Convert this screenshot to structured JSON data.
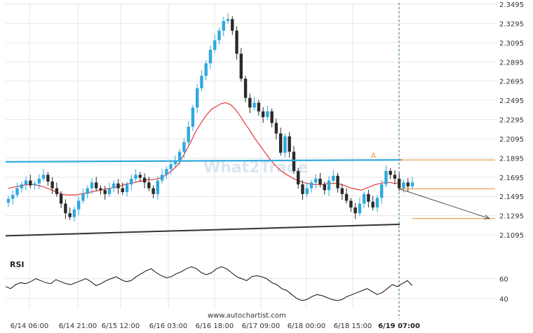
{
  "chart_data": {
    "type": "candlestick",
    "title": "",
    "ylim": [
      2.1015,
      2.3495
    ],
    "y_ticks": [
      "2.3495",
      "2.3295",
      "2.3095",
      "2.2895",
      "2.2695",
      "2.2495",
      "2.2295",
      "2.2095",
      "2.1895",
      "2.1695",
      "2.1495",
      "2.1295",
      "2.1095"
    ],
    "x_ticks": [
      "6/14 06:00",
      "6/14 21:00",
      "6/15 12:00",
      "6/16 03:00",
      "6/16 18:00",
      "6/17 09:00",
      "6/18 00:00",
      "6/18 15:00",
      "6/19 07:00"
    ],
    "highlight_x_tick": "6/19 07:00",
    "grid": true,
    "colors": {
      "bull": "#2fa8df",
      "bear": "#2a2a2a",
      "ma": "#e53935",
      "resistance": "#33aadd",
      "support": "#333333",
      "projection": "#e8892b",
      "forecast_arrow": "#555555"
    },
    "close_series": [
      2.147,
      2.151,
      2.158,
      2.162,
      2.166,
      2.161,
      2.163,
      2.168,
      2.172,
      2.165,
      2.158,
      2.152,
      2.142,
      2.132,
      2.128,
      2.136,
      2.145,
      2.152,
      2.158,
      2.164,
      2.158,
      2.156,
      2.152,
      2.158,
      2.163,
      2.158,
      2.154,
      2.162,
      2.168,
      2.172,
      2.169,
      2.164,
      2.158,
      2.152,
      2.166,
      2.172,
      2.178,
      2.183,
      2.186,
      2.196,
      2.206,
      2.222,
      2.242,
      2.262,
      2.275,
      2.288,
      2.302,
      2.312,
      2.322,
      2.332,
      2.334,
      2.322,
      2.298,
      2.272,
      2.252,
      2.242,
      2.247,
      2.238,
      2.232,
      2.238,
      2.226,
      2.215,
      2.195,
      2.212,
      2.196,
      2.176,
      2.162,
      2.152,
      2.158,
      2.164,
      2.168,
      2.162,
      2.156,
      2.166,
      2.171,
      2.158,
      2.152,
      2.145,
      2.138,
      2.132,
      2.142,
      2.152,
      2.144,
      2.138,
      2.148,
      2.162,
      2.176,
      2.172,
      2.168,
      2.158,
      2.164,
      2.16,
      2.164
    ],
    "ma_series": [
      2.158,
      2.159,
      2.16,
      2.161,
      2.162,
      2.162,
      2.161,
      2.16,
      2.158,
      2.156,
      2.154,
      2.152,
      2.151,
      2.151,
      2.151,
      2.152,
      2.153,
      2.154,
      2.155,
      2.156,
      2.157,
      2.158,
      2.159,
      2.16,
      2.162,
      2.163,
      2.164,
      2.165,
      2.166,
      2.167,
      2.167,
      2.168,
      2.17,
      2.173,
      2.177,
      2.182,
      2.19,
      2.199,
      2.209,
      2.219,
      2.227,
      2.234,
      2.24,
      2.243,
      2.246,
      2.247,
      2.245,
      2.24,
      2.233,
      2.225,
      2.218,
      2.21,
      2.203,
      2.196,
      2.189,
      2.183,
      2.178,
      2.174,
      2.171,
      2.168,
      2.166,
      2.164,
      2.163,
      2.162,
      2.162,
      2.162,
      2.163,
      2.163,
      2.163,
      2.162,
      2.16,
      2.158,
      2.157,
      2.156,
      2.158,
      2.16,
      2.162,
      2.163,
      2.164,
      2.164,
      2.163,
      2.164
    ],
    "resistance_line": {
      "x": [
        0,
        573
      ],
      "y": [
        2.1855,
        2.1875
      ]
    },
    "support_line": {
      "x": [
        0,
        570
      ],
      "y": [
        2.1085,
        2.1205
      ]
    },
    "projection_levels": [
      2.1875,
      2.1575,
      2.1265
    ],
    "pattern_point_label": "A",
    "rsi": {
      "label": "RSI",
      "y_ticks": [
        "60",
        "40"
      ],
      "values": [
        52,
        50,
        54,
        56,
        55,
        57,
        60,
        58,
        56,
        55,
        59,
        57,
        55,
        54,
        56,
        58,
        60,
        57,
        53,
        55,
        58,
        60,
        62,
        59,
        57,
        58,
        62,
        65,
        68,
        70,
        66,
        63,
        61,
        62,
        65,
        67,
        70,
        72,
        70,
        66,
        64,
        66,
        70,
        72,
        70,
        66,
        62,
        60,
        58,
        62,
        63,
        62,
        60,
        56,
        54,
        50,
        48,
        44,
        40,
        38,
        39,
        42,
        44,
        43,
        41,
        39,
        38,
        39,
        42,
        44,
        46,
        48,
        50,
        47,
        44,
        46,
        50,
        54,
        52,
        55,
        58,
        53
      ]
    },
    "watermark": "What2Trade",
    "footer": "www.autochartist.com"
  }
}
